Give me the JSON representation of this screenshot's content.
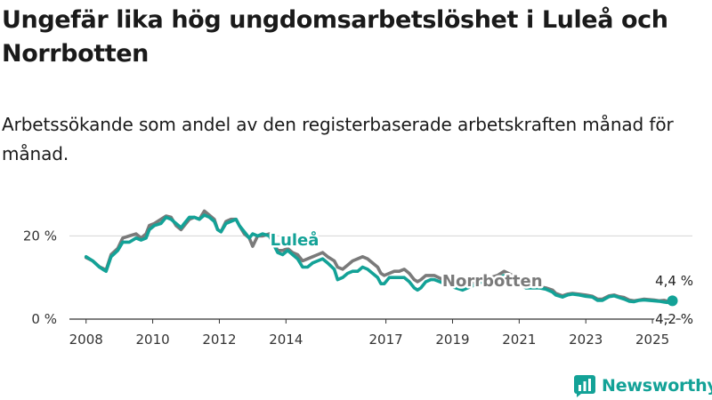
{
  "header": {
    "title": "Ungefär lika hög ungdomsarbetslöshet i Luleå och Norrbotten",
    "subtitle": "Arbetssökande som andel av den registerbaserade arbetskraften månad för månad."
  },
  "brand": {
    "name": "Newsworthy",
    "color": "#13a297"
  },
  "chart_data": {
    "type": "line",
    "y_unit": "%",
    "ylim": [
      0,
      28
    ],
    "yticks": [
      {
        "value": 0,
        "label": "0 %"
      },
      {
        "value": 20,
        "label": "20 %"
      }
    ],
    "xlim": [
      2007.5,
      2026.2
    ],
    "xticks": [
      {
        "value": 2008,
        "label": "2008"
      },
      {
        "value": 2010,
        "label": "2010"
      },
      {
        "value": 2012,
        "label": "2012"
      },
      {
        "value": 2014,
        "label": "2014"
      },
      {
        "value": 2017,
        "label": "2017"
      },
      {
        "value": 2019,
        "label": "2019"
      },
      {
        "value": 2021,
        "label": "2021"
      },
      {
        "value": 2023,
        "label": "2023"
      },
      {
        "value": 2025,
        "label": "2025"
      }
    ],
    "grid": "horizontal",
    "series": [
      {
        "name": "Norrbotten",
        "color": "#7a7a7a",
        "end_label": "4,2 %",
        "points": [
          [
            2008.0,
            14.8
          ],
          [
            2008.2,
            14.0
          ],
          [
            2008.4,
            12.6
          ],
          [
            2008.5,
            12.2
          ],
          [
            2008.6,
            11.8
          ],
          [
            2008.75,
            15.5
          ],
          [
            2008.95,
            17.0
          ],
          [
            2009.1,
            19.5
          ],
          [
            2009.3,
            20.0
          ],
          [
            2009.5,
            20.5
          ],
          [
            2009.65,
            19.5
          ],
          [
            2009.8,
            20.5
          ],
          [
            2009.9,
            22.5
          ],
          [
            2010.05,
            23.0
          ],
          [
            2010.25,
            24.0
          ],
          [
            2010.4,
            24.8
          ],
          [
            2010.55,
            24.5
          ],
          [
            2010.7,
            22.5
          ],
          [
            2010.85,
            21.5
          ],
          [
            2010.95,
            22.5
          ],
          [
            2011.1,
            24.0
          ],
          [
            2011.25,
            24.5
          ],
          [
            2011.4,
            24.0
          ],
          [
            2011.55,
            26.0
          ],
          [
            2011.7,
            25.0
          ],
          [
            2011.85,
            24.0
          ],
          [
            2011.95,
            21.5
          ],
          [
            2012.05,
            21.0
          ],
          [
            2012.2,
            23.5
          ],
          [
            2012.35,
            24.0
          ],
          [
            2012.5,
            24.0
          ],
          [
            2012.6,
            22.5
          ],
          [
            2012.75,
            20.5
          ],
          [
            2012.9,
            19.5
          ],
          [
            2013.0,
            17.5
          ],
          [
            2013.15,
            20.0
          ],
          [
            2013.3,
            20.0
          ],
          [
            2013.5,
            20.5
          ],
          [
            2013.75,
            16.5
          ],
          [
            2013.9,
            16.5
          ],
          [
            2014.05,
            17.0
          ],
          [
            2014.2,
            16.0
          ],
          [
            2014.35,
            15.5
          ],
          [
            2014.5,
            14.0
          ],
          [
            2014.65,
            14.5
          ],
          [
            2014.8,
            15.0
          ],
          [
            2014.95,
            15.5
          ],
          [
            2015.1,
            16.0
          ],
          [
            2015.25,
            15.0
          ],
          [
            2015.45,
            14.0
          ],
          [
            2015.55,
            12.5
          ],
          [
            2015.7,
            12.0
          ],
          [
            2015.85,
            13.0
          ],
          [
            2016.0,
            14.0
          ],
          [
            2016.15,
            14.5
          ],
          [
            2016.3,
            15.0
          ],
          [
            2016.45,
            14.5
          ],
          [
            2016.6,
            13.5
          ],
          [
            2016.75,
            12.5
          ],
          [
            2016.85,
            11.0
          ],
          [
            2016.95,
            10.5
          ],
          [
            2017.1,
            11.0
          ],
          [
            2017.25,
            11.5
          ],
          [
            2017.4,
            11.5
          ],
          [
            2017.55,
            12.0
          ],
          [
            2017.7,
            11.0
          ],
          [
            2017.85,
            9.5
          ],
          [
            2017.95,
            9.0
          ],
          [
            2018.05,
            9.5
          ],
          [
            2018.2,
            10.5
          ],
          [
            2018.35,
            10.5
          ],
          [
            2018.45,
            10.5
          ],
          [
            2019.1,
            8.0
          ],
          [
            2019.3,
            7.5
          ],
          [
            2019.6,
            8.5
          ],
          [
            2019.9,
            9.5
          ],
          [
            2020.15,
            10.0
          ],
          [
            2020.35,
            10.5
          ],
          [
            2020.55,
            11.5
          ],
          [
            2020.8,
            10.5
          ],
          [
            2021.0,
            9.0
          ],
          [
            2021.2,
            7.8
          ],
          [
            2021.4,
            7.6
          ],
          [
            2021.6,
            7.8
          ],
          [
            2021.8,
            7.5
          ],
          [
            2022.0,
            7.0
          ],
          [
            2022.1,
            6.2
          ],
          [
            2022.3,
            5.6
          ],
          [
            2022.45,
            6.0
          ],
          [
            2022.6,
            6.2
          ],
          [
            2022.8,
            6.0
          ],
          [
            2023.0,
            5.8
          ],
          [
            2023.2,
            5.5
          ],
          [
            2023.35,
            4.8
          ],
          [
            2023.5,
            4.8
          ],
          [
            2023.7,
            5.6
          ],
          [
            2023.85,
            5.8
          ],
          [
            2024.0,
            5.4
          ],
          [
            2024.15,
            5.2
          ],
          [
            2024.3,
            4.6
          ],
          [
            2024.45,
            4.4
          ],
          [
            2024.6,
            4.6
          ],
          [
            2024.75,
            4.8
          ],
          [
            2024.9,
            4.7
          ],
          [
            2025.05,
            4.6
          ],
          [
            2025.2,
            4.4
          ],
          [
            2025.35,
            4.5
          ],
          [
            2025.45,
            4.3
          ],
          [
            2025.6,
            4.2
          ]
        ]
      },
      {
        "name": "Luleå",
        "color": "#13a297",
        "end_label": "4,4 %",
        "points": [
          [
            2008.0,
            15.0
          ],
          [
            2008.2,
            14.0
          ],
          [
            2008.4,
            12.5
          ],
          [
            2008.5,
            12.0
          ],
          [
            2008.6,
            11.5
          ],
          [
            2008.75,
            15.0
          ],
          [
            2008.95,
            16.5
          ],
          [
            2009.1,
            18.5
          ],
          [
            2009.3,
            18.5
          ],
          [
            2009.5,
            19.5
          ],
          [
            2009.65,
            19.0
          ],
          [
            2009.8,
            19.5
          ],
          [
            2009.9,
            21.5
          ],
          [
            2010.05,
            22.5
          ],
          [
            2010.25,
            23.0
          ],
          [
            2010.4,
            24.5
          ],
          [
            2010.55,
            24.0
          ],
          [
            2010.7,
            23.0
          ],
          [
            2010.85,
            22.0
          ],
          [
            2010.95,
            23.0
          ],
          [
            2011.1,
            24.5
          ],
          [
            2011.25,
            24.5
          ],
          [
            2011.4,
            24.0
          ],
          [
            2011.55,
            25.0
          ],
          [
            2011.7,
            24.5
          ],
          [
            2011.85,
            23.5
          ],
          [
            2011.95,
            21.5
          ],
          [
            2012.05,
            21.0
          ],
          [
            2012.2,
            23.0
          ],
          [
            2012.35,
            23.5
          ],
          [
            2012.5,
            24.0
          ],
          [
            2012.6,
            22.5
          ],
          [
            2012.75,
            21.0
          ],
          [
            2012.9,
            19.5
          ],
          [
            2013.0,
            20.5
          ],
          [
            2013.15,
            20.0
          ],
          [
            2013.3,
            20.5
          ],
          [
            2013.5,
            20.0
          ],
          [
            2013.75,
            16.0
          ],
          [
            2013.9,
            15.5
          ],
          [
            2014.05,
            16.5
          ],
          [
            2014.2,
            15.5
          ],
          [
            2014.35,
            14.5
          ],
          [
            2014.5,
            12.5
          ],
          [
            2014.65,
            12.5
          ],
          [
            2014.8,
            13.5
          ],
          [
            2014.95,
            14.0
          ],
          [
            2015.1,
            14.5
          ],
          [
            2015.25,
            13.5
          ],
          [
            2015.45,
            12.0
          ],
          [
            2015.55,
            9.5
          ],
          [
            2015.7,
            10.0
          ],
          [
            2015.85,
            11.0
          ],
          [
            2016.0,
            11.5
          ],
          [
            2016.15,
            11.5
          ],
          [
            2016.3,
            12.5
          ],
          [
            2016.45,
            12.0
          ],
          [
            2016.6,
            11.0
          ],
          [
            2016.75,
            10.0
          ],
          [
            2016.85,
            8.5
          ],
          [
            2016.95,
            8.5
          ],
          [
            2017.1,
            10.0
          ],
          [
            2017.25,
            10.0
          ],
          [
            2017.4,
            10.0
          ],
          [
            2017.55,
            10.0
          ],
          [
            2017.7,
            9.0
          ],
          [
            2017.85,
            7.5
          ],
          [
            2017.95,
            7.0
          ],
          [
            2018.05,
            7.5
          ],
          [
            2018.2,
            9.0
          ],
          [
            2018.35,
            9.5
          ],
          [
            2018.45,
            9.5
          ],
          [
            2019.1,
            7.5
          ],
          [
            2019.3,
            7.0
          ],
          [
            2019.6,
            8.0
          ],
          [
            2019.9,
            9.0
          ],
          [
            2020.15,
            9.5
          ],
          [
            2020.35,
            9.8
          ],
          [
            2020.55,
            10.5
          ],
          [
            2020.8,
            9.8
          ],
          [
            2021.0,
            8.5
          ],
          [
            2021.2,
            7.5
          ],
          [
            2021.4,
            7.5
          ],
          [
            2021.6,
            7.5
          ],
          [
            2021.8,
            7.2
          ],
          [
            2022.0,
            6.5
          ],
          [
            2022.1,
            5.8
          ],
          [
            2022.3,
            5.3
          ],
          [
            2022.45,
            5.8
          ],
          [
            2022.6,
            6.0
          ],
          [
            2022.8,
            5.8
          ],
          [
            2023.0,
            5.5
          ],
          [
            2023.2,
            5.3
          ],
          [
            2023.35,
            4.5
          ],
          [
            2023.5,
            4.5
          ],
          [
            2023.7,
            5.4
          ],
          [
            2023.85,
            5.6
          ],
          [
            2024.0,
            5.2
          ],
          [
            2024.15,
            4.8
          ],
          [
            2024.3,
            4.3
          ],
          [
            2024.45,
            4.2
          ],
          [
            2024.6,
            4.5
          ],
          [
            2024.75,
            4.6
          ],
          [
            2024.9,
            4.5
          ],
          [
            2025.05,
            4.4
          ],
          [
            2025.2,
            4.3
          ],
          [
            2025.35,
            4.1
          ],
          [
            2025.45,
            4.0
          ],
          [
            2025.6,
            4.4
          ]
        ]
      }
    ]
  }
}
